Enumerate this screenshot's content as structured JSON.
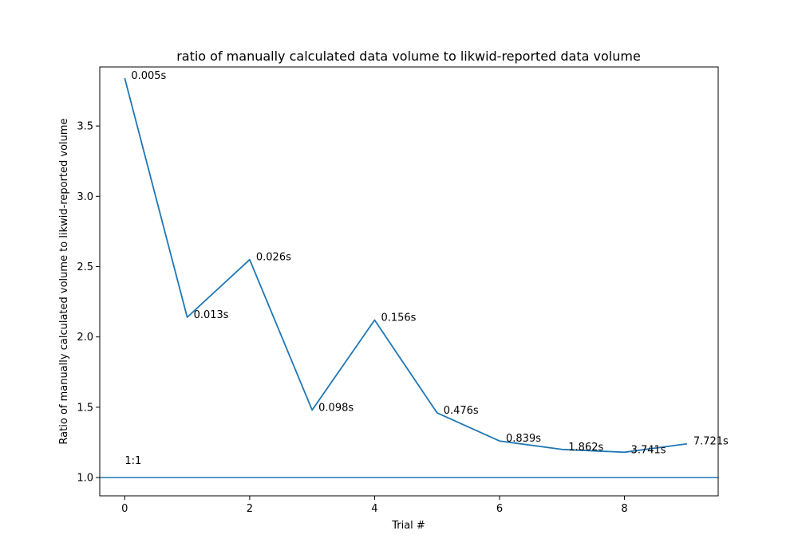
{
  "chart_data": {
    "type": "line",
    "title": "ratio of manually calculated data volume to likwid-reported data volume",
    "xlabel": "Trial #",
    "ylabel": "Ratio of manually calculated volume to likwid-reported volume",
    "xlim": [
      -0.4,
      9.5
    ],
    "ylim": [
      0.87,
      3.92
    ],
    "xticks": [
      0,
      2,
      4,
      6,
      8
    ],
    "xtick_labels": [
      "0",
      "2",
      "4",
      "6",
      "8"
    ],
    "yticks": [
      1.0,
      1.5,
      2.0,
      2.5,
      3.0,
      3.5
    ],
    "ytick_labels": [
      "1.0",
      "1.5",
      "2.0",
      "2.5",
      "3.0",
      "3.5"
    ],
    "grid": false,
    "series": [
      {
        "x": [
          0,
          1,
          2,
          3,
          4,
          5,
          6,
          7,
          8,
          9
        ],
        "values": [
          3.84,
          2.14,
          2.55,
          1.48,
          2.12,
          1.46,
          1.26,
          1.2,
          1.18,
          1.24
        ],
        "labels": [
          "0.005s",
          "0.013s",
          "0.026s",
          "0.098s",
          "0.156s",
          "0.476s",
          "0.839s",
          "1.862s",
          "3.741s",
          "7.721s"
        ],
        "color": "#1f77b4"
      }
    ],
    "reference_line": {
      "y": 1.0,
      "label": "1:1",
      "color": "#1f77b4"
    }
  }
}
